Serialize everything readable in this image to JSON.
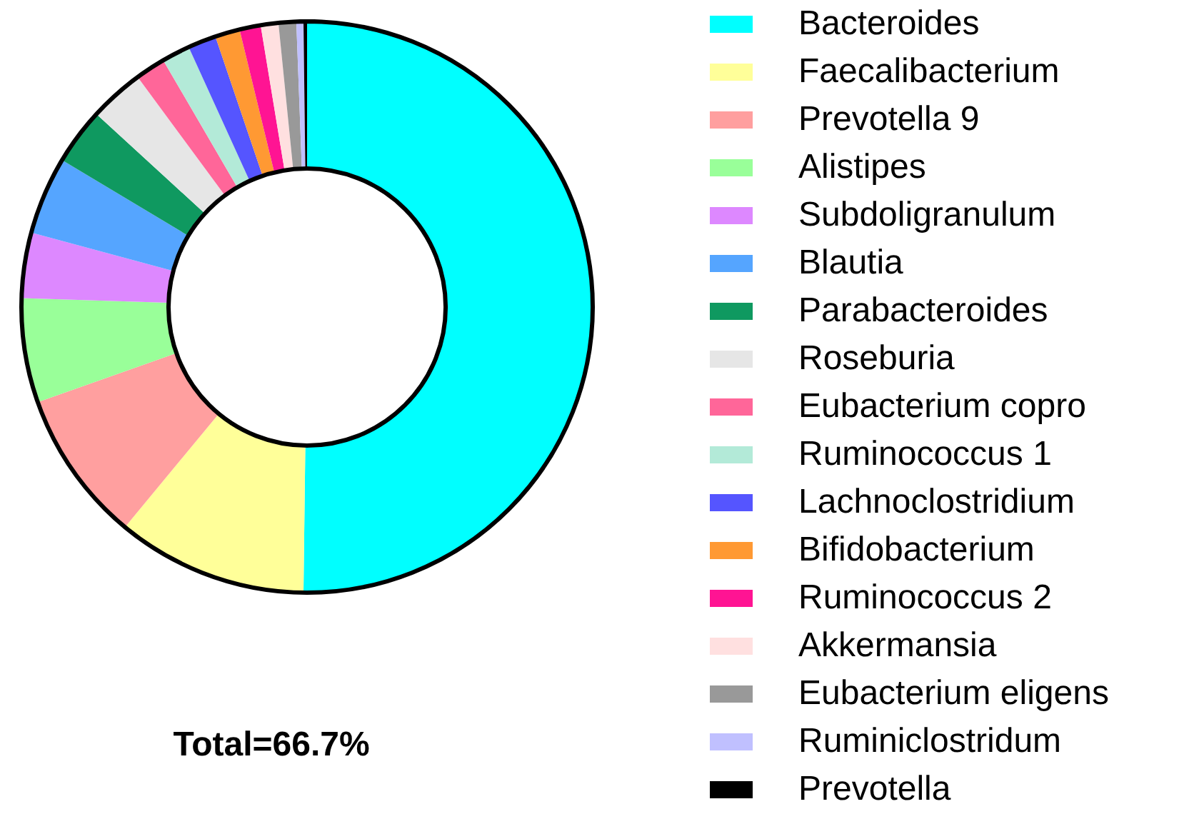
{
  "chart_data": {
    "type": "donut",
    "categories": [
      "Bacteroides",
      "Faecalibacterium",
      "Prevotella 9",
      "Alistipes",
      "Subdoligranulum",
      "Blautia",
      "Parabacteroides",
      "Roseburia",
      "Eubacterium copro",
      "Ruminococcus 1",
      "Lachnoclostridium",
      "Bifidobacterium",
      "Ruminococcus 2",
      "Akkermansia",
      "Eubacterium eligens",
      "Ruminiclostridum",
      "Prevotella"
    ],
    "values": [
      50.2,
      10.8,
      8.6,
      5.9,
      3.7,
      4.4,
      3.2,
      3.1,
      1.7,
      1.6,
      1.6,
      1.4,
      1.2,
      1.0,
      1.0,
      0.4,
      0.2
    ],
    "colors": [
      "#00ffff",
      "#ffff99",
      "#ff9f9f",
      "#99ff99",
      "#dd88ff",
      "#55a5ff",
      "#0f9960",
      "#e6e6e6",
      "#ff6699",
      "#b3ead8",
      "#5555ff",
      "#ff9933",
      "#ff1493",
      "#ffe0e0",
      "#999999",
      "#c0c0ff",
      "#000000"
    ],
    "legend": "right",
    "annotations": [
      "Total=66.7%"
    ]
  }
}
